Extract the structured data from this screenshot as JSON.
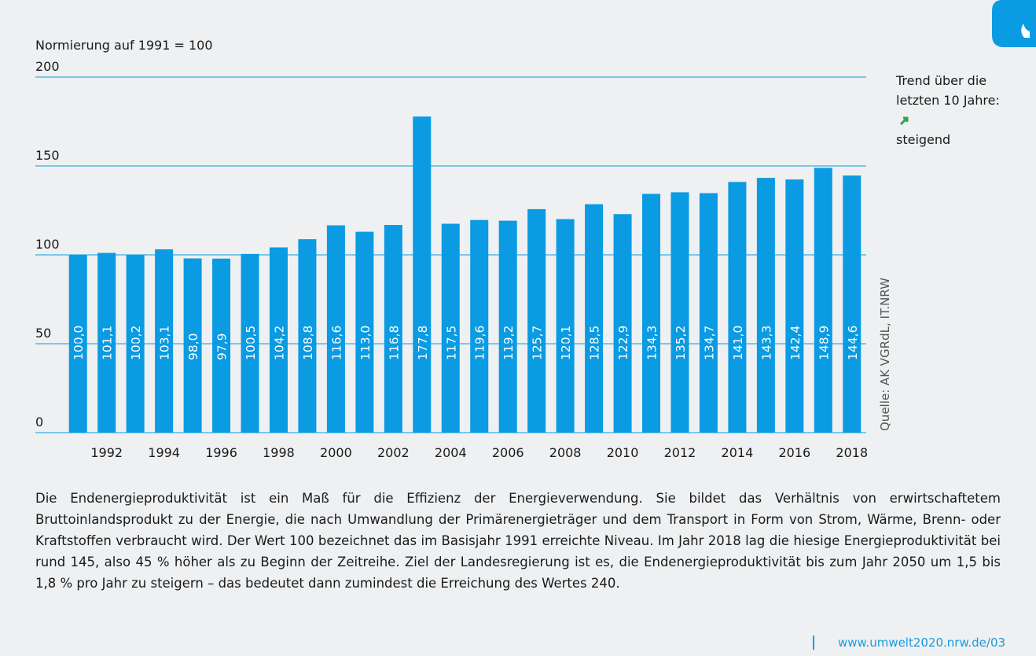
{
  "chart_data": {
    "type": "bar",
    "y_label": "Normierung auf 1991 = 100",
    "categories": [
      null,
      "1992",
      null,
      "1994",
      null,
      "1996",
      null,
      "1998",
      null,
      "2000",
      null,
      "2002",
      null,
      "2004",
      null,
      "2006",
      null,
      "2008",
      null,
      "2010",
      null,
      "2012",
      null,
      "2014",
      null,
      "2016",
      null,
      "2018"
    ],
    "values": [
      100.0,
      101.1,
      100.2,
      103.1,
      98.0,
      97.9,
      100.5,
      104.2,
      108.8,
      116.6,
      113.0,
      116.8,
      177.8,
      117.5,
      119.6,
      119.2,
      125.7,
      120.1,
      128.5,
      122.9,
      134.3,
      135.2,
      134.7,
      141.0,
      143.3,
      142.4,
      148.9,
      144.6
    ],
    "value_labels": [
      "100,0",
      "101,1",
      "100,2",
      "103,1",
      "98,0",
      "97,9",
      "100,5",
      "104,2",
      "108,8",
      "116,6",
      "113,0",
      "116,8",
      "177,8",
      "117,5",
      "119,6",
      "119,2",
      "125,7",
      "120,1",
      "128,5",
      "122,9",
      "134,3",
      "135,2",
      "134,7",
      "141,0",
      "143,3",
      "142,4",
      "148,9",
      "144,6"
    ],
    "color": "#0a9be2",
    "ylim": [
      0,
      200
    ],
    "yticks": [
      0,
      50,
      100,
      150,
      200
    ],
    "grid": true,
    "trend": [
      "Trend über die",
      "letzten 10 Jahre:",
      "steigend"
    ],
    "source": "Quelle: AK VGRdL, IT.NRW"
  },
  "text": {
    "paragraph": "Die Endenergieproduktivität ist ein Maß für die Effizienz der Energieverwendung. Sie bildet das Verhältnis von erwirtschaftetem Bruttoinlandsprodukt zu der Energie, die nach Umwandlung der Primärenergieträger und dem Transport in Form von Strom, Wärme, Brenn- oder Kraftstoffen verbraucht wird. Der Wert 100 bezeichnet das im Basisjahr 1991 erreichte Niveau. Im Jahr 2018 lag die hiesige Energieproduktivität bei rund 145, also 45 % höher als zu Beginn der Zeitreihe. Ziel der Landesregierung ist es, die Endenergieproduktivität bis zum Jahr 2050 um 1,5 bis 1,8 % pro Jahr zu steigern – das bedeutet dann zumindest die Erreichung des Wertes 240.",
    "link": "www.umwelt2020.nrw.de/03"
  }
}
